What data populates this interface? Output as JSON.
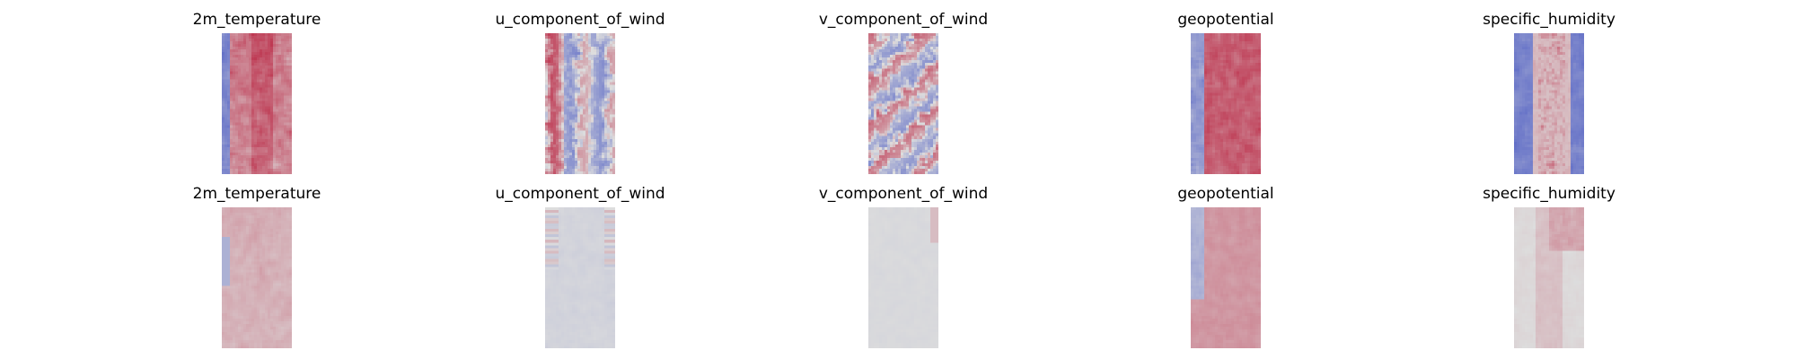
{
  "chart_data": {
    "type": "heatmap",
    "colormap": "coolwarm",
    "colormap_colors": {
      "cold": "#3b4cc0",
      "neutral": "#dddddd",
      "warm": "#b40426"
    },
    "axes_visible": false,
    "panels": [
      {
        "title": "2m_temperature",
        "row": 0,
        "col": 0,
        "pattern": "temp",
        "strength": 0.85,
        "seed": 11
      },
      {
        "title": "u_component_of_wind",
        "row": 0,
        "col": 1,
        "pattern": "uwind",
        "strength": 0.75,
        "seed": 23
      },
      {
        "title": "v_component_of_wind",
        "row": 0,
        "col": 2,
        "pattern": "vwind",
        "strength": 0.8,
        "seed": 37
      },
      {
        "title": "geopotential",
        "row": 0,
        "col": 3,
        "pattern": "geo",
        "strength": 0.9,
        "seed": 41
      },
      {
        "title": "specific_humidity",
        "row": 0,
        "col": 4,
        "pattern": "humid",
        "strength": 0.9,
        "seed": 53
      },
      {
        "title": "2m_temperature",
        "row": 1,
        "col": 0,
        "pattern": "temp_pred",
        "strength": 0.55,
        "seed": 61
      },
      {
        "title": "u_component_of_wind",
        "row": 1,
        "col": 1,
        "pattern": "uwind_pred",
        "strength": 0.35,
        "seed": 73
      },
      {
        "title": "v_component_of_wind",
        "row": 1,
        "col": 2,
        "pattern": "vwind_pred",
        "strength": 0.25,
        "seed": 87
      },
      {
        "title": "geopotential",
        "row": 1,
        "col": 3,
        "pattern": "geo_pred",
        "strength": 0.65,
        "seed": 91
      },
      {
        "title": "specific_humidity",
        "row": 1,
        "col": 4,
        "pattern": "humid_pred",
        "strength": 0.45,
        "seed": 103
      }
    ]
  }
}
